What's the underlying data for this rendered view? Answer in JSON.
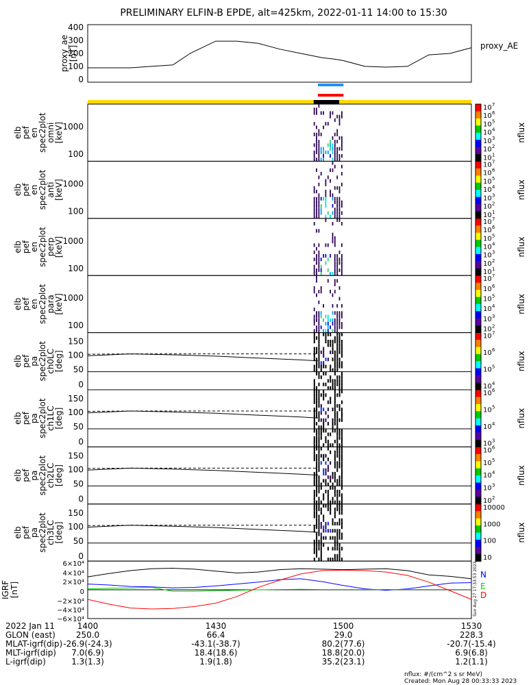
{
  "title": "PRELIMINARY ELFIN-B EPDE, alt=425km, 2022-01-11 14:00 to 15:30",
  "colors": {
    "ae_indicator": "#1e90ff",
    "red_indicator": "#ff0000",
    "bar_yellow": "#ffd700",
    "bar_black": "#000000",
    "grf_n": "#0000ff",
    "grf_e": "#00cc00",
    "grf_d": "#ff0000"
  },
  "timebar": {
    "segments": [
      {
        "start": "14:00",
        "end": "14:53",
        "color": "#ffd700"
      },
      {
        "start": "14:53",
        "end": "14:59",
        "color": "#000000"
      },
      {
        "start": "14:59",
        "end": "15:30",
        "color": "#ffd700"
      }
    ]
  },
  "indicators": [
    {
      "start": "14:54",
      "end": "15:00",
      "color": "#1e90ff"
    },
    {
      "start": "14:54",
      "end": "15:00",
      "color": "#ff0000"
    }
  ],
  "panels": {
    "ae": {
      "ylabel": [
        "proxy_ae",
        "[nT]"
      ],
      "yticks": [
        "400",
        "300",
        "200",
        "100",
        "0"
      ],
      "legend": "proxy_AE"
    },
    "omni": {
      "ylabel": [
        "elb",
        "pef",
        "en",
        "spec2plot",
        "omni",
        "[keV]"
      ],
      "yticks": [
        "1000",
        "100"
      ],
      "cbar_ticks": [
        "10",
        "10",
        "10",
        "10",
        "10",
        "10",
        "10"
      ],
      "cbar_exps": [
        "7",
        "6",
        "5",
        "4",
        "3",
        "2",
        "1"
      ],
      "cbar_label": "nflux"
    },
    "anti": {
      "ylabel": [
        "elb",
        "pef",
        "en",
        "spec2plot",
        "anti",
        "[keV]"
      ],
      "yticks": [
        "1000",
        "100"
      ],
      "cbar_ticks": [
        "10",
        "10",
        "10",
        "10",
        "10",
        "10",
        "10"
      ],
      "cbar_exps": [
        "7",
        "6",
        "5",
        "4",
        "3",
        "2",
        "1"
      ],
      "cbar_label": "nflux"
    },
    "perp": {
      "ylabel": [
        "elb",
        "pef",
        "en",
        "spec2plot",
        "perp",
        "[keV]"
      ],
      "yticks": [
        "1000",
        "100"
      ],
      "cbar_ticks": [
        "10",
        "10",
        "10",
        "10",
        "10",
        "10",
        "10"
      ],
      "cbar_exps": [
        "7",
        "6",
        "5",
        "4",
        "3",
        "2",
        "1"
      ],
      "cbar_label": "nflux"
    },
    "para": {
      "ylabel": [
        "elb",
        "pef",
        "en",
        "spec2plot",
        "para",
        "[keV]"
      ],
      "yticks": [
        "1000",
        "100"
      ],
      "cbar_ticks": [
        "10",
        "10",
        "10",
        "10",
        "10",
        "10"
      ],
      "cbar_exps": [
        "7",
        "6",
        "5",
        "4",
        "3",
        "2"
      ],
      "cbar_label": "nflux"
    },
    "ch0": {
      "ylabel": [
        "elb",
        "pef",
        "pa",
        "spec2plot",
        "ch0LC",
        "[deg]"
      ],
      "yticks": [
        "150",
        "100",
        "50",
        "0"
      ],
      "cbar_ticks": [
        "10",
        "10",
        "10",
        "10"
      ],
      "cbar_exps": [
        "7",
        "6",
        "5",
        "4"
      ],
      "cbar_label": "nflux"
    },
    "ch1": {
      "ylabel": [
        "elb",
        "pef",
        "pa",
        "spec2plot",
        "ch1LC",
        "[deg]"
      ],
      "yticks": [
        "150",
        "100",
        "50",
        "0"
      ],
      "cbar_ticks": [
        "10",
        "10",
        "10",
        "10"
      ],
      "cbar_exps": [
        "6",
        "5",
        "4",
        "3"
      ],
      "cbar_label": "nflux"
    },
    "ch2": {
      "ylabel": [
        "elb",
        "pef",
        "pa",
        "spec2plot",
        "ch2LC",
        "[deg]"
      ],
      "yticks": [
        "150",
        "100",
        "50",
        "0"
      ],
      "cbar_ticks": [
        "10",
        "10",
        "10",
        "10",
        "10"
      ],
      "cbar_exps": [
        "6",
        "5",
        "4",
        "3",
        "2"
      ],
      "cbar_label": "nflux"
    },
    "ch3": {
      "ylabel": [
        "elb",
        "pef",
        "pa",
        "spec2plot",
        "ch3LC",
        "[deg]"
      ],
      "yticks": [
        "150",
        "100",
        "50",
        "0"
      ],
      "cbar_ticks": [
        "10000",
        "1000",
        "100",
        "10"
      ],
      "cbar_label": "nflux"
    },
    "igrf": {
      "ylabel": [
        "IGRF",
        "[nT]"
      ],
      "yticks": [
        "6×10⁴",
        "4×10⁴",
        "2×10⁴",
        "0",
        "−2×10⁴",
        "−4×10⁴",
        "−6×10⁴"
      ],
      "legend": [
        "N",
        "E",
        "D"
      ],
      "side_note": "Sun Aug 27 17:33:53 2023"
    }
  },
  "xaxis": {
    "ticks": [
      "1400",
      "1430",
      "1500",
      "1530"
    ]
  },
  "ephemeris": {
    "rows": [
      {
        "label": "2022 Jan 11",
        "values": [
          "1400",
          "1430",
          "1500",
          "1530"
        ]
      },
      {
        "label": "GLON (east)",
        "values": [
          "250.0",
          "66.4",
          "29.0",
          "228.3"
        ]
      },
      {
        "label": "MLAT-igrf(dip)",
        "values": [
          "-26.9(-24.3)",
          "-43.1(-38.7)",
          "80.2(77.6)",
          "-20.7(-15.4)"
        ]
      },
      {
        "label": "MLT-igrf(dip)",
        "values": [
          "7.0(6.9)",
          "18.4(18.6)",
          "18.8(20.0)",
          "6.9(6.8)"
        ]
      },
      {
        "label": "L-igrf(dip)",
        "values": [
          "1.3(1.3)",
          "1.9(1.8)",
          "35.2(23.1)",
          "1.2(1.1)"
        ]
      }
    ]
  },
  "footer": {
    "units": "nflux: #/(cm^2 s sr MeV)",
    "created": "Created: Mon Aug 28 00:33:33 2023"
  },
  "chart_data": [
    {
      "type": "line",
      "title": "proxy_AE",
      "xlabel": "",
      "ylabel": "proxy_ae [nT]",
      "ylim": [
        0,
        400
      ],
      "x": [
        "14:00",
        "14:10",
        "14:15",
        "14:20",
        "14:24",
        "14:30",
        "14:35",
        "14:40",
        "14:45",
        "14:50",
        "14:55",
        "14:58",
        "15:00",
        "15:05",
        "15:10",
        "15:15",
        "15:20",
        "15:25",
        "15:30"
      ],
      "series": [
        {
          "name": "proxy_AE",
          "values": [
            100,
            100,
            110,
            120,
            200,
            285,
            285,
            270,
            230,
            200,
            170,
            160,
            150,
            110,
            105,
            110,
            190,
            200,
            240
          ]
        }
      ]
    },
    {
      "type": "line",
      "title": "",
      "xlabel": "",
      "ylabel": "[deg]",
      "ylim": [
        0,
        180
      ],
      "x": [
        "14:00",
        "14:10",
        "14:20",
        "14:30",
        "14:40",
        "14:50",
        "14:54"
      ],
      "series": [
        {
          "name": "",
          "values": [
            107,
            113,
            110,
            106,
            100,
            94,
            91
          ]
        },
        {
          "name": "",
          "values": [
            112,
            113,
            113,
            113,
            113,
            113,
            113
          ]
        }
      ]
    },
    {
      "type": "line",
      "title": "",
      "xlabel": "",
      "ylabel": "IGRF [nT]",
      "ylim": [
        -60000,
        60000
      ],
      "x": [
        "14:00",
        "14:05",
        "14:10",
        "14:15",
        "14:20",
        "14:25",
        "14:30",
        "14:35",
        "14:40",
        "14:45",
        "14:50",
        "14:55",
        "15:00",
        "15:05",
        "15:10",
        "15:15",
        "15:20",
        "15:25",
        "15:30"
      ],
      "series": [
        {
          "name": "N",
          "values": [
            12000,
            10000,
            7000,
            6000,
            4000,
            5000,
            8000,
            12000,
            16000,
            21000,
            23000,
            17000,
            9000,
            2000,
            -1000,
            2000,
            8000,
            14000,
            15000
          ]
        },
        {
          "name": "E",
          "values": [
            2000,
            3000,
            4000,
            5000,
            -3000,
            -3000,
            -2000,
            -1000,
            0,
            500,
            1000,
            500,
            500,
            500,
            500,
            500,
            500,
            500,
            500
          ]
        },
        {
          "name": "D",
          "values": [
            -20000,
            -30000,
            -38000,
            -40000,
            -39000,
            -35000,
            -28000,
            -14000,
            5000,
            20000,
            33000,
            40000,
            41000,
            40000,
            37000,
            30000,
            16000,
            -2000,
            -20000
          ]
        },
        {
          "name": "",
          "values": [
            27000,
            34000,
            40000,
            44000,
            45000,
            43000,
            39000,
            35000,
            37000,
            42000,
            44000,
            43000,
            42000,
            43000,
            44000,
            40000,
            31000,
            28000,
            23000
          ]
        }
      ]
    }
  ]
}
